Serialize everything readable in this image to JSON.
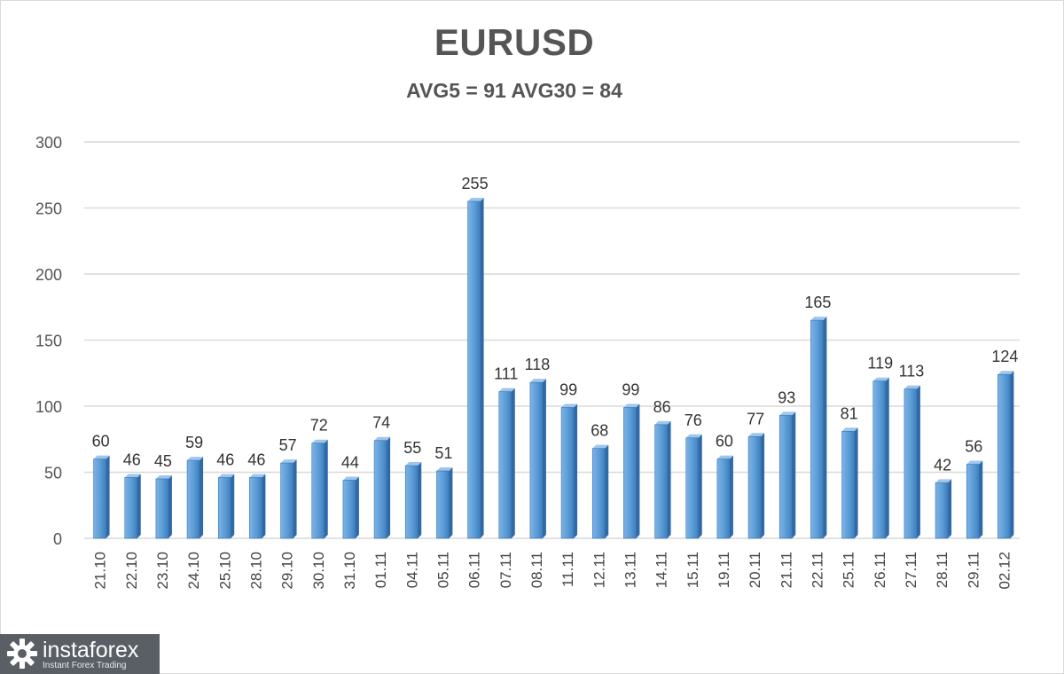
{
  "chart_data": {
    "type": "bar",
    "title": "EURUSD",
    "subtitle": "AVG5 = 91 AVG30 = 84",
    "categories": [
      "21.10",
      "22.10",
      "23.10",
      "24.10",
      "25.10",
      "28.10",
      "29.10",
      "30.10",
      "31.10",
      "01.11",
      "04.11",
      "05.11",
      "06.11",
      "07.11",
      "08.11",
      "11.11",
      "12.11",
      "13.11",
      "14.11",
      "15.11",
      "19.11",
      "20.11",
      "21.11",
      "22.11",
      "25.11",
      "26.11",
      "27.11",
      "28.11",
      "29.11",
      "02.12"
    ],
    "values": [
      60,
      46,
      45,
      59,
      46,
      46,
      57,
      72,
      44,
      74,
      55,
      51,
      255,
      111,
      118,
      99,
      68,
      99,
      86,
      76,
      60,
      77,
      93,
      165,
      81,
      119,
      113,
      42,
      56,
      124
    ],
    "ylim": [
      0,
      300
    ],
    "yticks": [
      0,
      50,
      100,
      150,
      200,
      250,
      300
    ],
    "grid": true,
    "bar_color": "#5b9bd5"
  },
  "logo": {
    "brand": "instaforex",
    "tagline": "Instant Forex Trading"
  }
}
